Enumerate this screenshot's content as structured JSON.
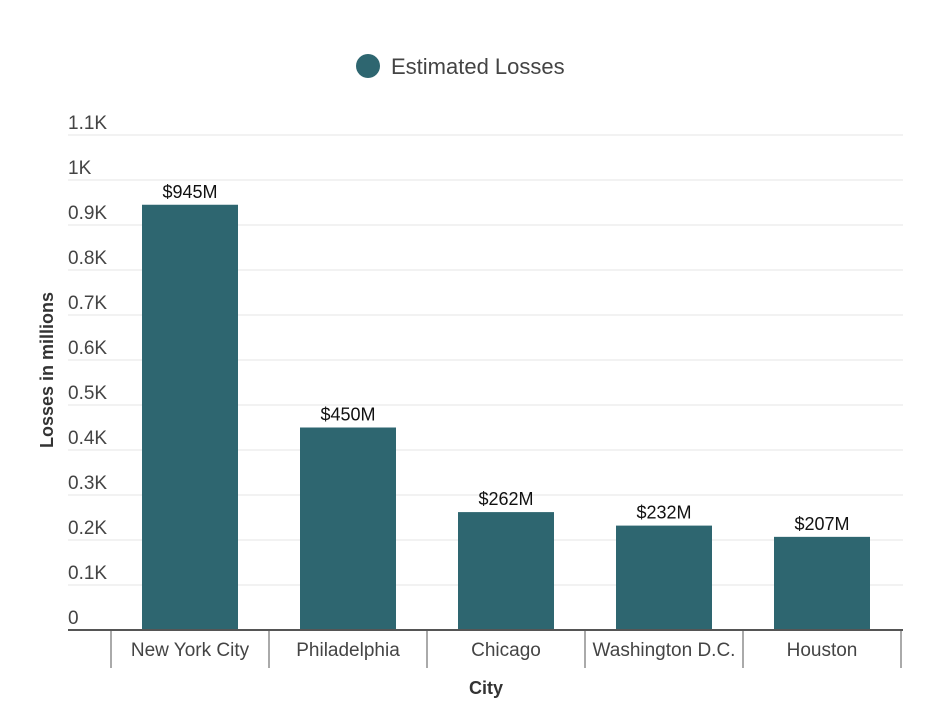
{
  "chart_data": {
    "type": "bar",
    "categories": [
      "New York City",
      "Philadelphia",
      "Chicago",
      "Washington D.C.",
      "Houston"
    ],
    "series": [
      {
        "name": "Estimated Losses",
        "values": [
          945,
          450,
          262,
          232,
          207
        ],
        "data_labels": [
          "$945M",
          "$450M",
          "$262M",
          "$232M",
          "$207M"
        ],
        "color": "#2e6670"
      }
    ],
    "xlabel": "City",
    "ylabel": "Losses in millions",
    "ylim": [
      0,
      1100
    ],
    "y_ticks": [
      {
        "value": 0,
        "label": "0"
      },
      {
        "value": 100,
        "label": "0.1K"
      },
      {
        "value": 200,
        "label": "0.2K"
      },
      {
        "value": 300,
        "label": "0.3K"
      },
      {
        "value": 400,
        "label": "0.4K"
      },
      {
        "value": 500,
        "label": "0.5K"
      },
      {
        "value": 600,
        "label": "0.6K"
      },
      {
        "value": 700,
        "label": "0.7K"
      },
      {
        "value": 800,
        "label": "0.8K"
      },
      {
        "value": 900,
        "label": "0.9K"
      },
      {
        "value": 1000,
        "label": "1K"
      },
      {
        "value": 1100,
        "label": "1.1K"
      }
    ],
    "grid": true,
    "legend_position": "top-center",
    "colors": {
      "bar": "#2e6670",
      "grid": "#e6e6e6",
      "axis": "#555555"
    }
  }
}
